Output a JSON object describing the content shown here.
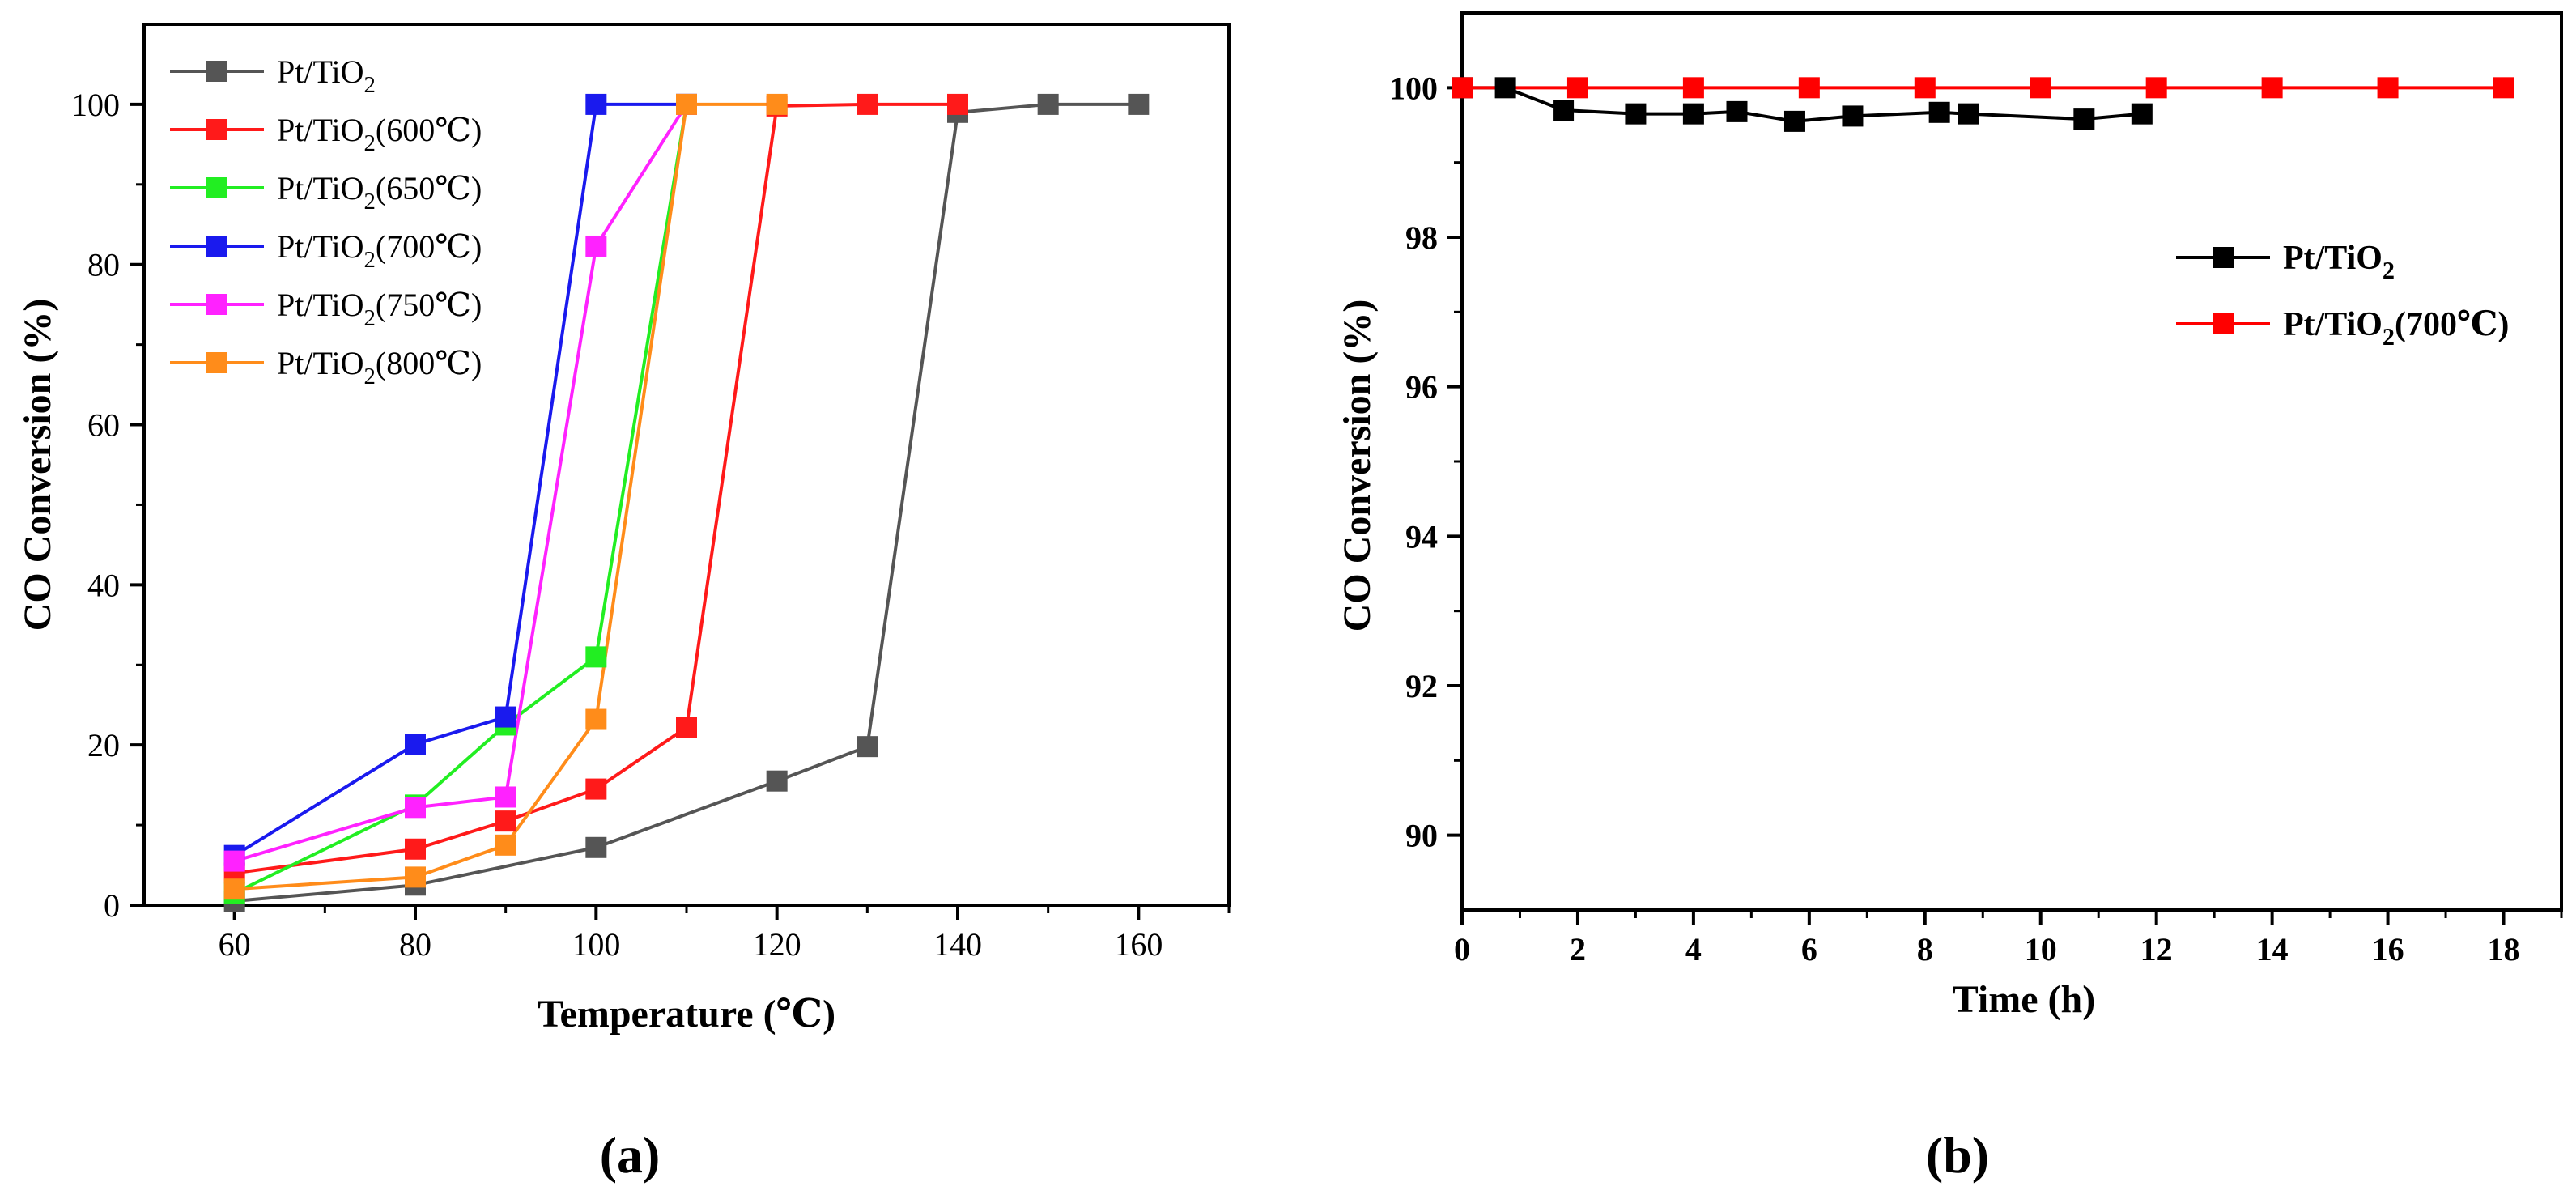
{
  "chart_data": [
    {
      "panel": "(a)",
      "type": "line",
      "xlabel": "Temperature (℃)",
      "ylabel": "CO Conversion (%)",
      "xlim": [
        50,
        170
      ],
      "ylim": [
        0,
        110
      ],
      "xticks": [
        60,
        80,
        100,
        120,
        140,
        160
      ],
      "yticks": [
        0,
        20,
        40,
        60,
        80,
        100
      ],
      "legend_position": "top-left",
      "series": [
        {
          "name": "Pt/TiO2",
          "label_base": "Pt/TiO",
          "label_sub": "2",
          "label_suffix": "",
          "color": "#555555",
          "x": [
            60,
            80,
            100,
            120,
            130,
            140,
            150,
            160
          ],
          "y": [
            0.5,
            2.5,
            7.2,
            15.5,
            19.8,
            99.0,
            100,
            100
          ]
        },
        {
          "name": "Pt/TiO2(600℃)",
          "label_base": "Pt/TiO",
          "label_sub": "2",
          "label_suffix": "(600℃)",
          "color": "#ff1a1a",
          "x": [
            60,
            80,
            90,
            100,
            110,
            120,
            130,
            140
          ],
          "y": [
            4.0,
            7.0,
            10.5,
            14.5,
            22.2,
            99.8,
            100,
            100
          ]
        },
        {
          "name": "Pt/TiO2(650℃)",
          "label_base": "Pt/TiO",
          "label_sub": "2",
          "label_suffix": "(650℃)",
          "color": "#22ee22",
          "x": [
            60,
            80,
            90,
            100,
            110
          ],
          "y": [
            1.5,
            12.5,
            22.5,
            31.0,
            100
          ]
        },
        {
          "name": "Pt/TiO2(700℃)",
          "label_base": "Pt/TiO",
          "label_sub": "2",
          "label_suffix": "(700℃)",
          "color": "#1a1aee",
          "x": [
            60,
            80,
            90,
            100,
            110
          ],
          "y": [
            6.2,
            20.1,
            23.5,
            100,
            100
          ]
        },
        {
          "name": "Pt/TiO2(750℃)",
          "label_base": "Pt/TiO",
          "label_sub": "2",
          "label_suffix": "(750℃)",
          "color": "#ff22ff",
          "x": [
            60,
            80,
            90,
            100,
            110
          ],
          "y": [
            5.5,
            12.2,
            13.5,
            82.3,
            100
          ]
        },
        {
          "name": "Pt/TiO2(800℃)",
          "label_base": "Pt/TiO",
          "label_sub": "2",
          "label_suffix": "(800℃)",
          "color": "#ff8c1a",
          "x": [
            60,
            80,
            90,
            100,
            110,
            120
          ],
          "y": [
            2.0,
            3.5,
            7.5,
            23.2,
            100,
            100
          ]
        }
      ]
    },
    {
      "panel": "(b)",
      "type": "line",
      "xlabel": "Time (h)",
      "ylabel": "CO Conversion  (%)",
      "xlim": [
        0,
        19
      ],
      "ylim": [
        89,
        101
      ],
      "xticks": [
        0,
        2,
        4,
        6,
        8,
        10,
        12,
        14,
        16,
        18
      ],
      "yticks": [
        90,
        92,
        94,
        96,
        98,
        100
      ],
      "legend_position": "right",
      "series": [
        {
          "name": "Pt/TiO2",
          "label_base": "Pt/TiO",
          "label_sub": "2",
          "label_suffix": "",
          "color": "#000000",
          "x": [
            0,
            0.75,
            1.75,
            3,
            4,
            4.75,
            5.75,
            6.75,
            8.25,
            8.75,
            10.75,
            11.75
          ],
          "y": [
            100,
            100,
            99.7,
            99.65,
            99.65,
            99.68,
            99.55,
            99.62,
            99.67,
            99.65,
            99.58,
            99.65
          ]
        },
        {
          "name": "Pt/TiO2(700℃)",
          "label_base": "Pt/TiO",
          "label_sub": "2",
          "label_suffix": "(700℃)",
          "color": "#ff0000",
          "x": [
            0,
            2,
            4,
            6,
            8,
            10,
            12,
            14,
            16,
            18
          ],
          "y": [
            100,
            100,
            100,
            100,
            100,
            100,
            100,
            100,
            100,
            100
          ]
        }
      ]
    }
  ]
}
